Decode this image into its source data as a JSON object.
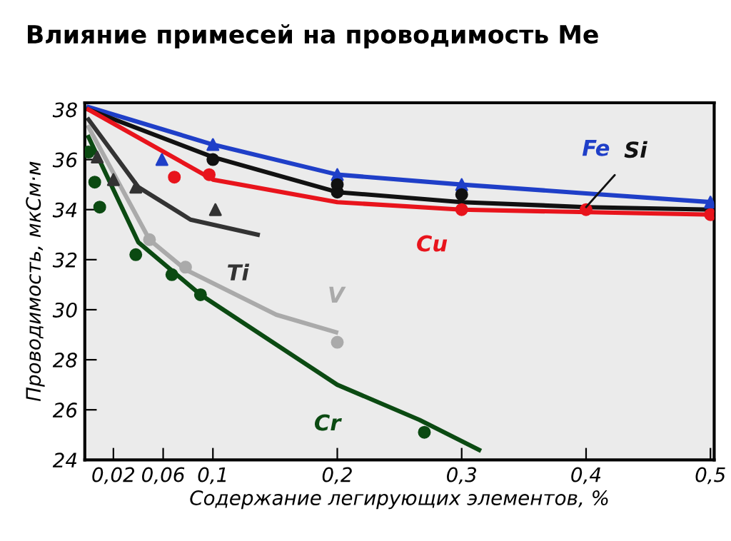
{
  "chart_data": {
    "type": "line",
    "title": "Влияние примесей на проводимость Me",
    "xlabel": "Содержание легирующих элементов, %",
    "ylabel": "Проводимость, мкСм·м",
    "xlim": [
      -0.003,
      0.503
    ],
    "ylim": [
      24,
      38.27
    ],
    "xticks": [
      {
        "value": 0.02,
        "label": "0,02"
      },
      {
        "value": 0.06,
        "label": "0,06"
      },
      {
        "value": 0.1,
        "label": "0,1"
      },
      {
        "value": 0.2,
        "label": "0,2"
      },
      {
        "value": 0.3,
        "label": "0,3"
      },
      {
        "value": 0.4,
        "label": "0,4"
      },
      {
        "value": 0.5,
        "label": "0,5"
      }
    ],
    "yticks": [
      24,
      26,
      28,
      30,
      32,
      34,
      36,
      38
    ],
    "grid": false,
    "line_style": "solid",
    "series": [
      {
        "color": "#1f3fc8",
        "x": [
          0,
          0.1,
          0.2,
          0.3,
          0.4,
          0.5
        ],
        "values": [
          38.1,
          36.6,
          35.4,
          35.0,
          34.65,
          34.3
        ]
      },
      {
        "color": "#111111",
        "x": [
          0,
          0.1,
          0.2,
          0.3,
          0.4,
          0.5
        ],
        "values": [
          38.0,
          36.1,
          34.7,
          34.3,
          34.1,
          34.0
        ]
      },
      {
        "color": "#e8141c",
        "x": [
          0,
          0.1,
          0.2,
          0.3,
          0.5
        ],
        "values": [
          38.0,
          35.2,
          34.3,
          34.0,
          33.8
        ]
      },
      {
        "color": "#333333",
        "x": [
          0,
          0.04,
          0.082,
          0.136
        ],
        "values": [
          37.6,
          34.9,
          33.6,
          33.0
        ]
      },
      {
        "color": "#aaaaaa",
        "x": [
          0,
          0.049,
          0.078,
          0.151,
          0.199
        ],
        "values": [
          37.3,
          32.8,
          31.6,
          29.8,
          29.1
        ]
      },
      {
        "color": "#0b4a12",
        "x": [
          0,
          0.04,
          0.09,
          0.2,
          0.266,
          0.314
        ],
        "values": [
          36.9,
          32.7,
          30.6,
          27.0,
          25.6,
          24.4
        ]
      },
      {
        "type": "scatter",
        "marker": "triangle",
        "color": "#1f3fc8",
        "x": [
          0.059,
          0.1,
          0.2,
          0.3,
          0.5
        ],
        "values": [
          36.0,
          36.6,
          35.4,
          35.0,
          34.3
        ]
      },
      {
        "type": "scatter",
        "marker": "circle",
        "color": "#111111",
        "x": [
          0.1,
          0.2,
          0.2,
          0.3
        ],
        "values": [
          36.0,
          34.7,
          35.0,
          34.6
        ]
      },
      {
        "type": "scatter",
        "marker": "circle",
        "color": "#e8141c",
        "x": [
          0.069,
          0.097,
          0.3,
          0.4,
          0.5
        ],
        "values": [
          35.3,
          35.4,
          34.0,
          34.0,
          33.8
        ]
      },
      {
        "type": "scatter",
        "marker": "triangle",
        "color": "#333333",
        "x": [
          0.007,
          0.02,
          0.038,
          0.102
        ],
        "values": [
          36.1,
          35.2,
          34.9,
          34.0
        ]
      },
      {
        "type": "scatter",
        "marker": "circle",
        "color": "#aaaaaa",
        "x": [
          0.049,
          0.078,
          0.2
        ],
        "values": [
          32.8,
          31.7,
          28.7
        ]
      },
      {
        "type": "scatter",
        "marker": "circle",
        "color": "#0b4a12",
        "x": [
          0.0,
          0.005,
          0.009,
          0.038,
          0.067,
          0.09,
          0.27
        ],
        "values": [
          36.3,
          35.1,
          34.1,
          32.2,
          31.4,
          30.6,
          25.1
        ]
      }
    ],
    "annotations": [
      {
        "text": "Fe",
        "x": 0.4,
        "y": 34.65
      },
      {
        "text": "Si",
        "x": 0.4,
        "y": 34.1
      },
      {
        "text": "Cu",
        "x": 0.3,
        "y": 34.0
      },
      {
        "text": "Ti",
        "x": 0.136,
        "y": 33.0
      },
      {
        "text": "V",
        "x": 0.199,
        "y": 29.1
      },
      {
        "text": "Cr",
        "x": 0.2,
        "y": 27.0
      }
    ]
  }
}
